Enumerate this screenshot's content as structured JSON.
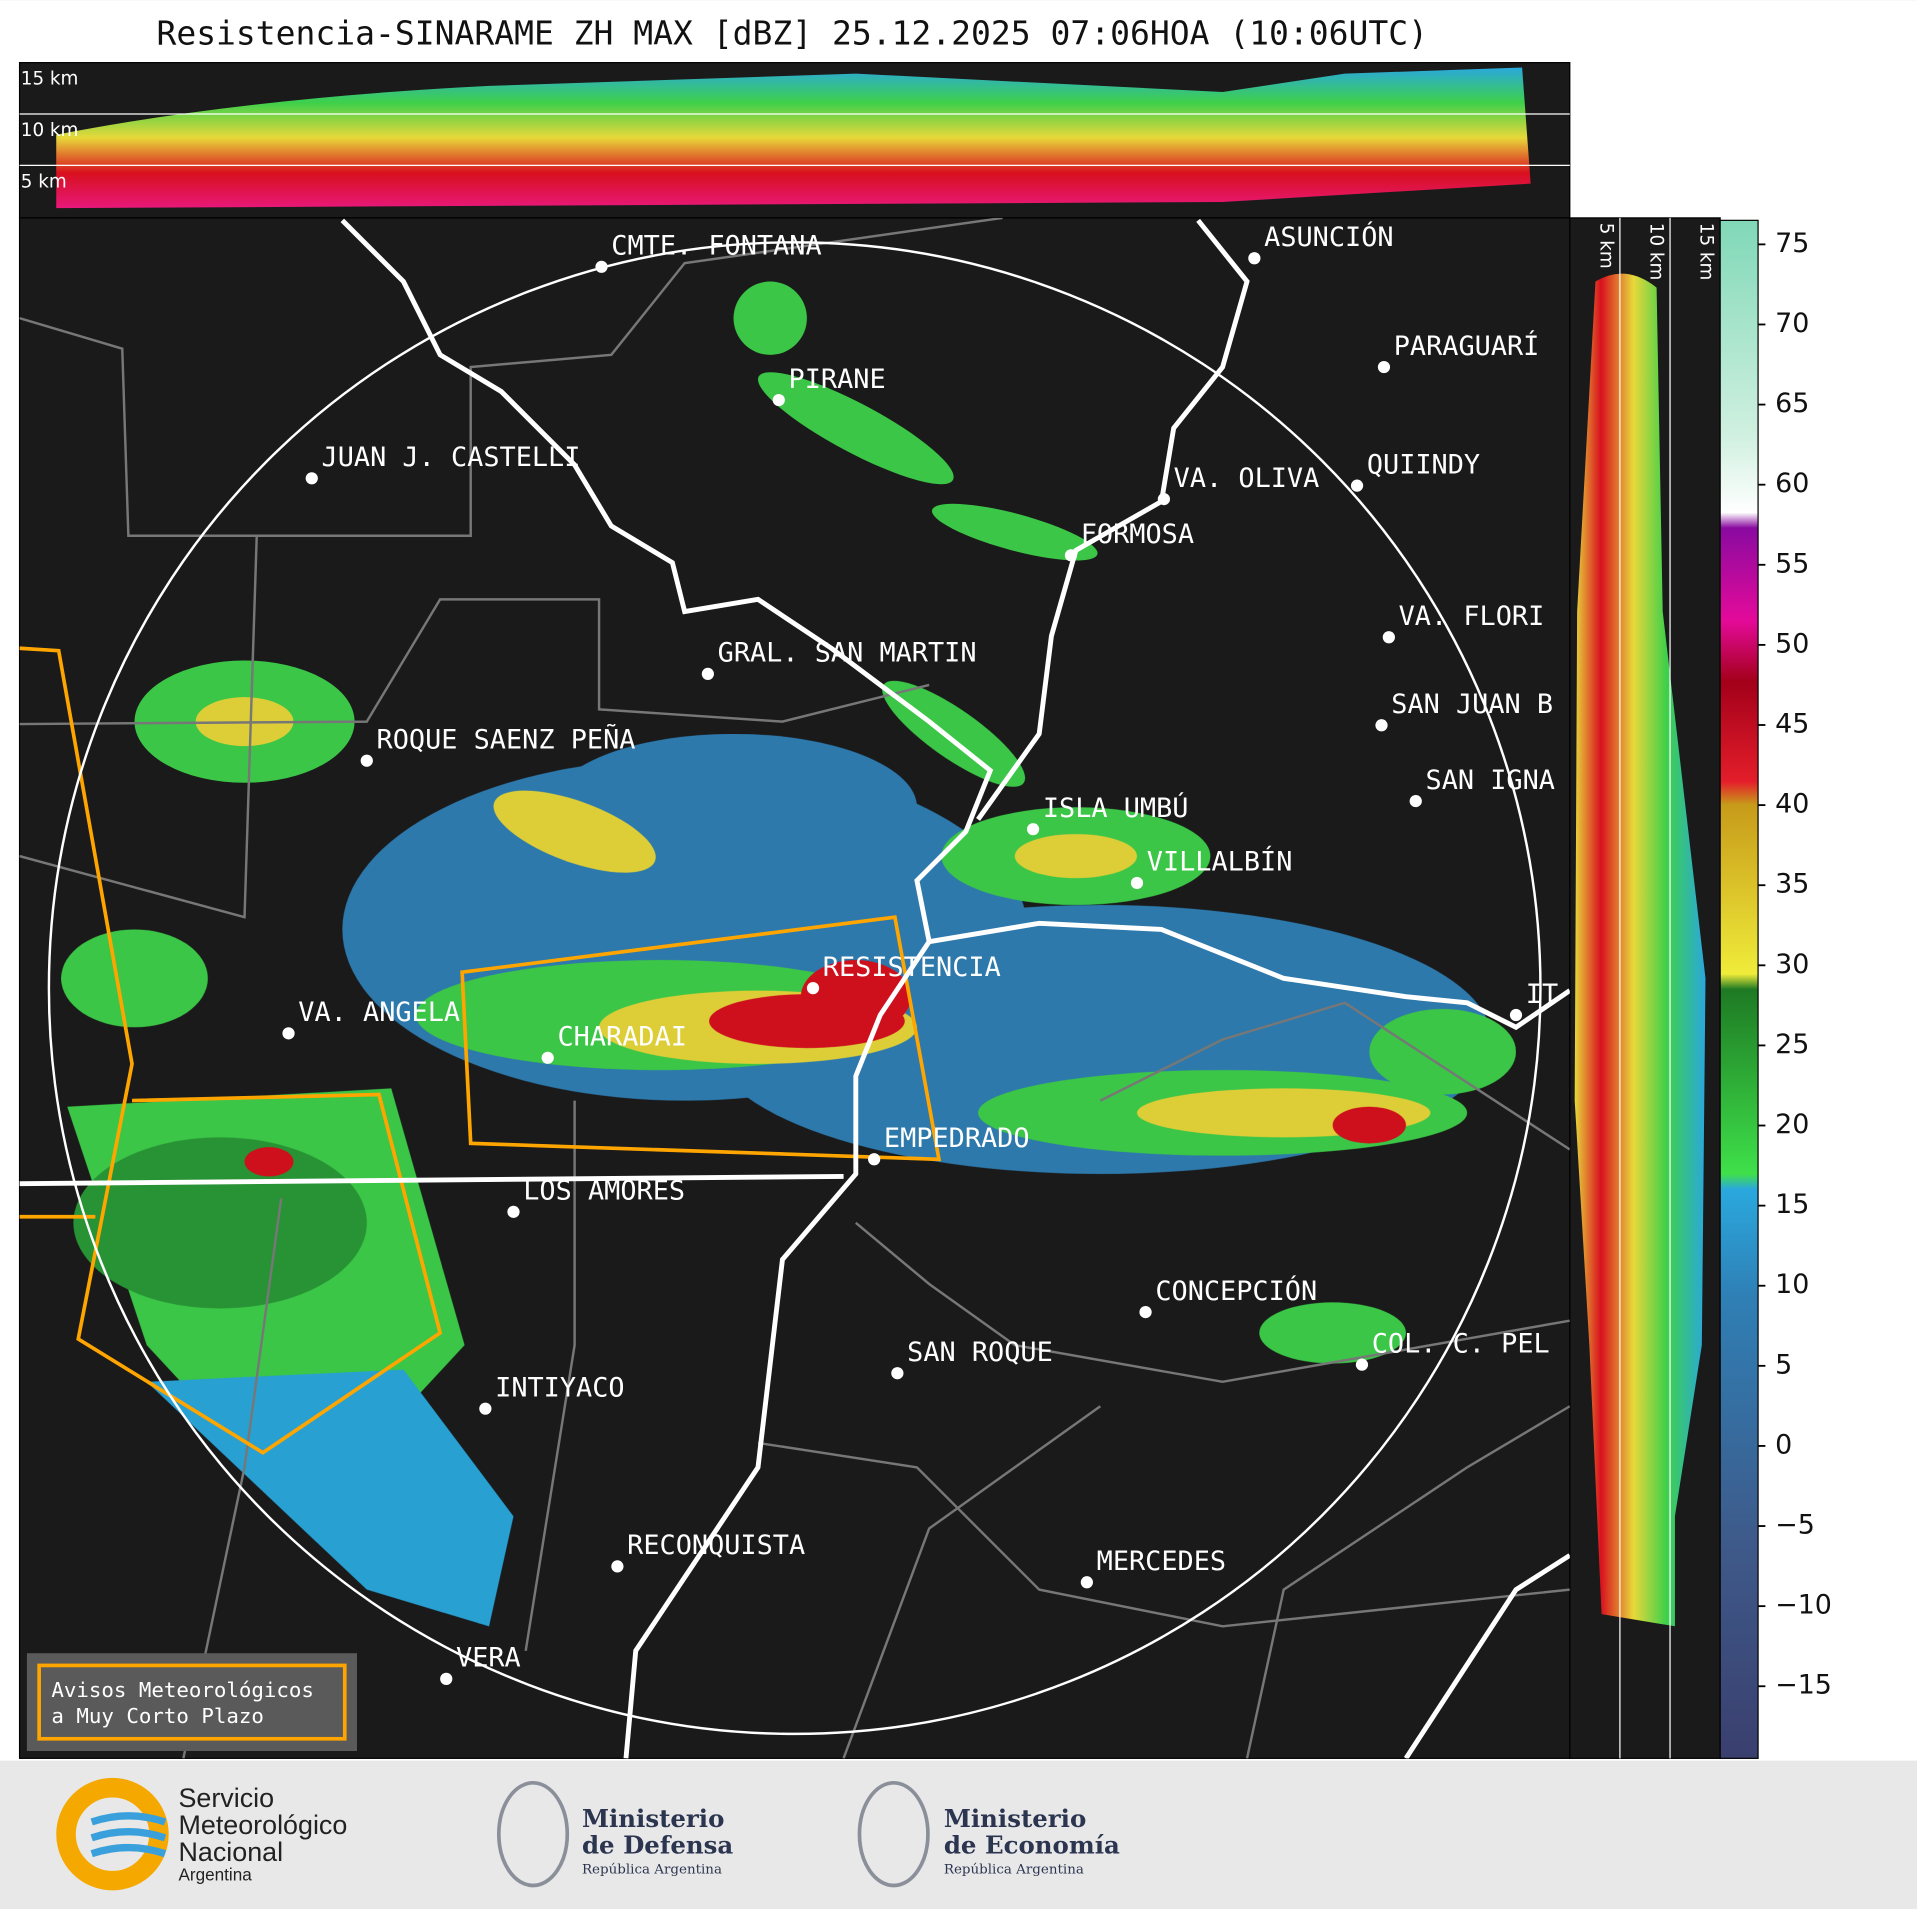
{
  "header": {
    "title": "Resistencia-SINARAME ZH MAX [dBZ] 25.12.2025 07:06HOA (10:06UTC)"
  },
  "top_panel": {
    "labels": [
      "15 km",
      "10 km",
      "5 km"
    ]
  },
  "side_panel": {
    "labels": [
      "5 km",
      "10 km",
      "15 km"
    ]
  },
  "map": {
    "cities": [
      "CMTE. FONTANA",
      "ASUNCIÓN",
      "PARAGUARÍ",
      "PIRANE",
      "JUAN J. CASTELLI",
      "VA. OLIVA",
      "QUIINDY",
      "FORMOSA",
      "VA. FLORI",
      "GRAL. SAN MARTIN",
      "SAN JUAN B",
      "ROQUE SAENZ PEÑA",
      "SAN IGNA",
      "ISLA UMBÚ",
      "VILLALBÍN",
      "RESISTENCIA",
      "VA. ANGELA",
      "CHARADAI",
      "IT",
      "EMPEDRADO",
      "LOS AMORES",
      "CONCEPCIÓN",
      "SAN ROQUE",
      "COL. C. PEL",
      "INTIYACO",
      "RECONQUISTA",
      "MERCEDES",
      "VERA"
    ],
    "legend_box": [
      "Avisos Meteorológicos",
      "a Muy Corto Plazo"
    ]
  },
  "colorbar": {
    "range": [
      -19.5,
      76.5
    ],
    "ticks": [
      {
        "value": -15,
        "label": "−15"
      },
      {
        "value": -10,
        "label": "−10"
      },
      {
        "value": -5,
        "label": "−5"
      },
      0,
      5,
      10,
      15,
      20,
      25,
      30,
      35,
      40,
      45,
      50,
      55,
      60,
      65,
      70,
      75
    ]
  },
  "footer": {
    "smn": [
      "Servicio",
      "Meteorológico",
      "Nacional",
      "Argentina"
    ],
    "defensa": [
      "Ministerio",
      "de Defensa",
      "República Argentina"
    ],
    "economia": [
      "Ministerio",
      "de Economía",
      "República Argentina"
    ]
  }
}
